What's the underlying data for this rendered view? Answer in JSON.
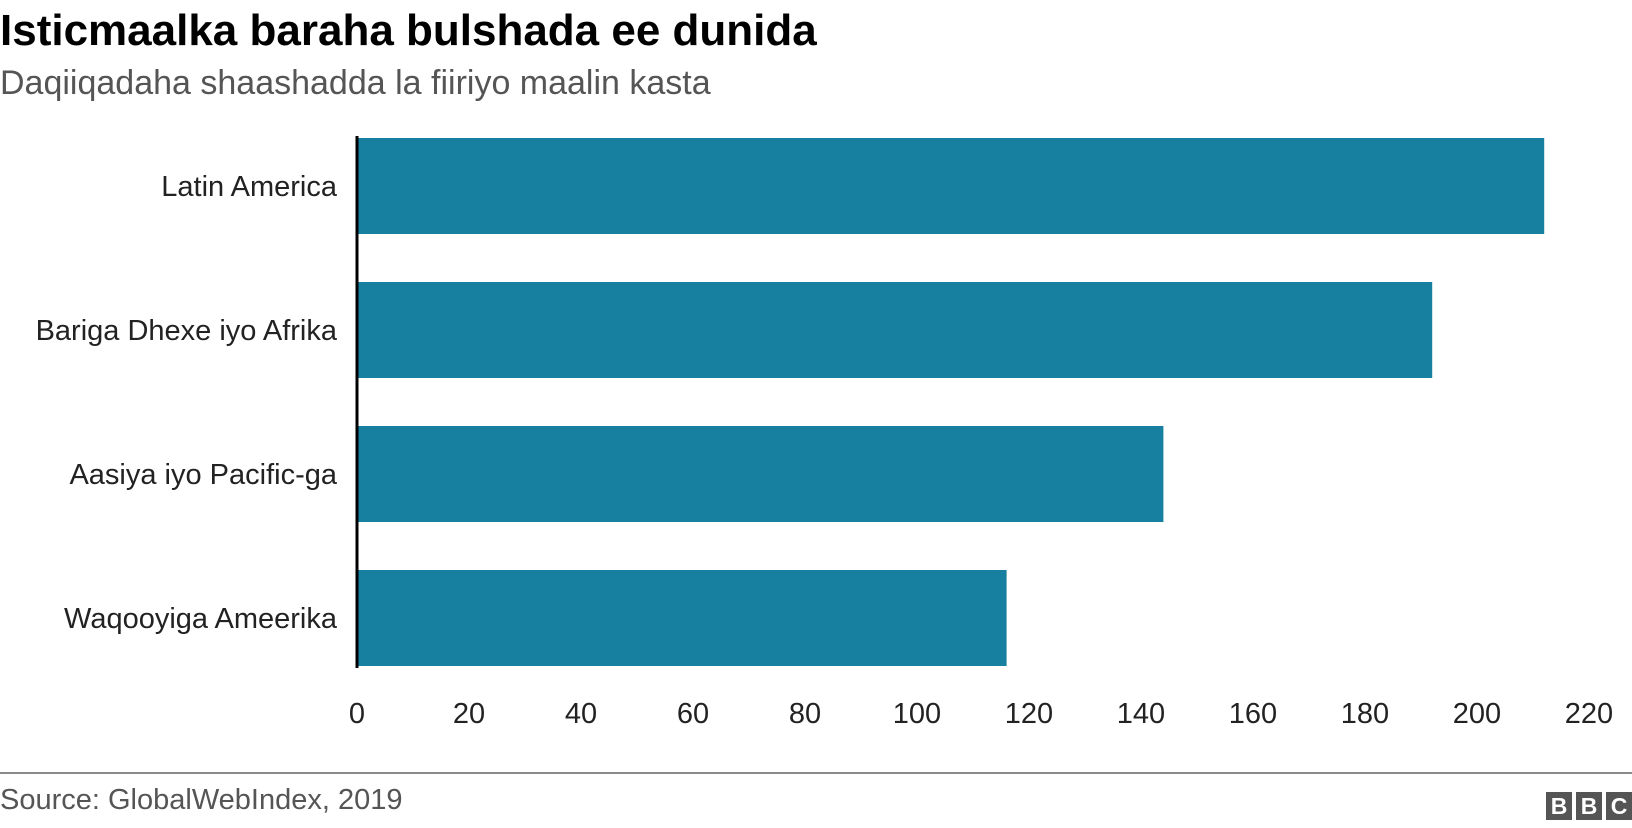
{
  "chart_data": {
    "type": "bar",
    "orientation": "horizontal",
    "title": "Isticmaalka baraha bulshada ee dunida",
    "subtitle": "Daqiiqadaha shaashadda la fiiriyo maalin kasta",
    "categories": [
      "Latin America",
      "Bariga Dhexe iyo Afrika",
      "Aasiya iyo Pacific-ga",
      "Waqooyiga Ameerika"
    ],
    "values": [
      212,
      192,
      144,
      116
    ],
    "xlim": [
      0,
      220
    ],
    "xticks": [
      "0",
      "20",
      "40",
      "60",
      "80",
      "100",
      "120",
      "140",
      "160",
      "180",
      "200",
      "220"
    ],
    "grid": false,
    "bar_color": "#1780a1"
  },
  "footer": {
    "source": "Source: GlobalWebIndex, 2019",
    "logo": [
      "B",
      "B",
      "C"
    ]
  }
}
